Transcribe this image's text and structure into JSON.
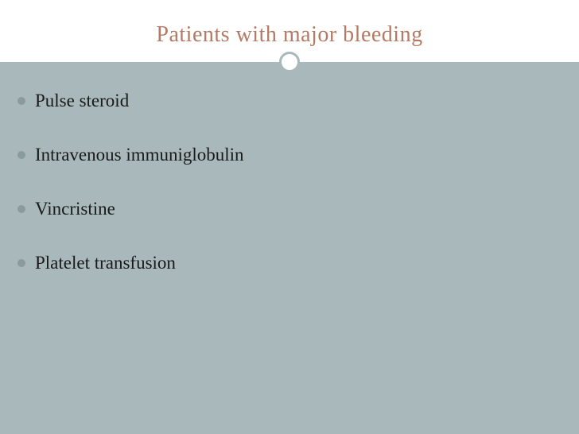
{
  "slide": {
    "title": "Patients with major bleeding",
    "title_color": "#b47a63",
    "title_fontsize": 28,
    "background_color": "#ffffff",
    "content_background": "#a8b8bb",
    "divider_color": "#a8b8bb",
    "circle_border_color": "#a8b8bb",
    "bullet_color": "#8a9b9e",
    "text_color": "#1a1a1a",
    "body_fontsize": 23,
    "bullets": [
      {
        "text": "Pulse steroid"
      },
      {
        "text": "Intravenous immuniglobulin"
      },
      {
        "text": "Vincristine"
      },
      {
        "text": "Platelet transfusion"
      }
    ]
  }
}
